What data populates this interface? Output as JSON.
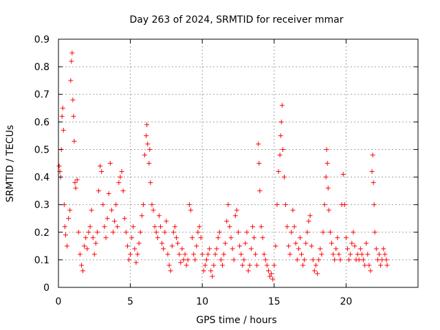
{
  "chart_data": {
    "type": "scatter",
    "title": "Day 263 of 2024, SRMTID for receiver mmar",
    "xlabel": "GPS time / hours",
    "ylabel": "SRMTID / TECUs",
    "xlim": [
      0,
      25
    ],
    "ylim": [
      0,
      0.9
    ],
    "x_ticks": [
      0,
      5,
      10,
      15,
      20
    ],
    "x_tick_labels": [
      "0",
      "5",
      "10",
      "15",
      "20"
    ],
    "y_ticks": [
      0,
      0.1,
      0.2,
      0.3,
      0.4,
      0.5,
      0.6,
      0.7,
      0.8,
      0.9
    ],
    "y_tick_labels": [
      "0",
      "0.1",
      "0.2",
      "0.3",
      "0.4",
      "0.5",
      "0.6",
      "0.7",
      "0.8",
      "0.9"
    ],
    "grid": true,
    "marker": "+",
    "marker_color": "#ff0000",
    "series": [
      {
        "name": "SRMTID",
        "points": [
          [
            0.05,
            0.44
          ],
          [
            0.1,
            0.42
          ],
          [
            0.15,
            0.4
          ],
          [
            0.2,
            0.5
          ],
          [
            0.25,
            0.62
          ],
          [
            0.3,
            0.65
          ],
          [
            0.35,
            0.57
          ],
          [
            0.4,
            0.3
          ],
          [
            0.45,
            0.22
          ],
          [
            0.5,
            0.19
          ],
          [
            0.6,
            0.15
          ],
          [
            0.7,
            0.25
          ],
          [
            0.8,
            0.28
          ],
          [
            0.85,
            0.75
          ],
          [
            0.9,
            0.82
          ],
          [
            0.95,
            0.85
          ],
          [
            1.0,
            0.68
          ],
          [
            1.05,
            0.62
          ],
          [
            1.1,
            0.53
          ],
          [
            1.15,
            0.38
          ],
          [
            1.2,
            0.36
          ],
          [
            1.3,
            0.39
          ],
          [
            1.4,
            0.2
          ],
          [
            1.5,
            0.12
          ],
          [
            1.6,
            0.08
          ],
          [
            1.7,
            0.06
          ],
          [
            1.8,
            0.15
          ],
          [
            1.9,
            0.18
          ],
          [
            2.0,
            0.14
          ],
          [
            2.1,
            0.2
          ],
          [
            2.2,
            0.22
          ],
          [
            2.3,
            0.28
          ],
          [
            2.4,
            0.18
          ],
          [
            2.5,
            0.12
          ],
          [
            2.6,
            0.16
          ],
          [
            2.7,
            0.2
          ],
          [
            2.8,
            0.35
          ],
          [
            2.9,
            0.44
          ],
          [
            3.0,
            0.42
          ],
          [
            3.1,
            0.3
          ],
          [
            3.2,
            0.22
          ],
          [
            3.3,
            0.18
          ],
          [
            3.4,
            0.25
          ],
          [
            3.5,
            0.34
          ],
          [
            3.6,
            0.45
          ],
          [
            3.7,
            0.28
          ],
          [
            3.8,
            0.2
          ],
          [
            3.9,
            0.24
          ],
          [
            4.0,
            0.3
          ],
          [
            4.1,
            0.22
          ],
          [
            4.2,
            0.38
          ],
          [
            4.3,
            0.4
          ],
          [
            4.4,
            0.42
          ],
          [
            4.5,
            0.35
          ],
          [
            4.6,
            0.25
          ],
          [
            4.7,
            0.2
          ],
          [
            4.8,
            0.15
          ],
          [
            4.9,
            0.1
          ],
          [
            5.0,
            0.12
          ],
          [
            5.1,
            0.18
          ],
          [
            5.2,
            0.22
          ],
          [
            5.3,
            0.14
          ],
          [
            5.4,
            0.09
          ],
          [
            5.5,
            0.12
          ],
          [
            5.6,
            0.16
          ],
          [
            5.7,
            0.2
          ],
          [
            5.8,
            0.26
          ],
          [
            5.9,
            0.3
          ],
          [
            6.0,
            0.48
          ],
          [
            6.1,
            0.55
          ],
          [
            6.15,
            0.59
          ],
          [
            6.2,
            0.52
          ],
          [
            6.3,
            0.45
          ],
          [
            6.35,
            0.5
          ],
          [
            6.4,
            0.38
          ],
          [
            6.5,
            0.3
          ],
          [
            6.6,
            0.28
          ],
          [
            6.7,
            0.22
          ],
          [
            6.8,
            0.2
          ],
          [
            6.9,
            0.18
          ],
          [
            7.0,
            0.26
          ],
          [
            7.1,
            0.22
          ],
          [
            7.2,
            0.16
          ],
          [
            7.3,
            0.14
          ],
          [
            7.4,
            0.2
          ],
          [
            7.5,
            0.24
          ],
          [
            7.6,
            0.12
          ],
          [
            7.7,
            0.08
          ],
          [
            7.8,
            0.06
          ],
          [
            7.9,
            0.15
          ],
          [
            8.0,
            0.2
          ],
          [
            8.1,
            0.22
          ],
          [
            8.2,
            0.18
          ],
          [
            8.3,
            0.16
          ],
          [
            8.4,
            0.12
          ],
          [
            8.5,
            0.09
          ],
          [
            8.6,
            0.14
          ],
          [
            8.7,
            0.1
          ],
          [
            8.8,
            0.12
          ],
          [
            8.9,
            0.08
          ],
          [
            9.0,
            0.1
          ],
          [
            9.1,
            0.3
          ],
          [
            9.2,
            0.28
          ],
          [
            9.3,
            0.18
          ],
          [
            9.4,
            0.12
          ],
          [
            9.5,
            0.1
          ],
          [
            9.6,
            0.15
          ],
          [
            9.7,
            0.2
          ],
          [
            9.8,
            0.22
          ],
          [
            9.9,
            0.18
          ],
          [
            10.0,
            0.12
          ],
          [
            10.1,
            0.06
          ],
          [
            10.2,
            0.08
          ],
          [
            10.3,
            0.1
          ],
          [
            10.4,
            0.12
          ],
          [
            10.5,
            0.14
          ],
          [
            10.6,
            0.06
          ],
          [
            10.7,
            0.04
          ],
          [
            10.8,
            0.08
          ],
          [
            10.9,
            0.12
          ],
          [
            11.0,
            0.14
          ],
          [
            11.1,
            0.18
          ],
          [
            11.2,
            0.2
          ],
          [
            11.3,
            0.1
          ],
          [
            11.4,
            0.08
          ],
          [
            11.5,
            0.12
          ],
          [
            11.6,
            0.16
          ],
          [
            11.7,
            0.24
          ],
          [
            11.8,
            0.3
          ],
          [
            11.9,
            0.22
          ],
          [
            12.0,
            0.18
          ],
          [
            12.1,
            0.14
          ],
          [
            12.2,
            0.1
          ],
          [
            12.3,
            0.26
          ],
          [
            12.4,
            0.28
          ],
          [
            12.5,
            0.2
          ],
          [
            12.6,
            0.15
          ],
          [
            12.7,
            0.12
          ],
          [
            12.8,
            0.08
          ],
          [
            12.9,
            0.1
          ],
          [
            13.0,
            0.16
          ],
          [
            13.1,
            0.2
          ],
          [
            13.2,
            0.06
          ],
          [
            13.3,
            0.08
          ],
          [
            13.4,
            0.14
          ],
          [
            13.5,
            0.22
          ],
          [
            13.6,
            0.18
          ],
          [
            13.7,
            0.12
          ],
          [
            13.8,
            0.08
          ],
          [
            13.9,
            0.52
          ],
          [
            13.95,
            0.45
          ],
          [
            14.0,
            0.35
          ],
          [
            14.1,
            0.22
          ],
          [
            14.2,
            0.18
          ],
          [
            14.3,
            0.12
          ],
          [
            14.4,
            0.1
          ],
          [
            14.5,
            0.08
          ],
          [
            14.6,
            0.06
          ],
          [
            14.7,
            0.04
          ],
          [
            14.8,
            0.05
          ],
          [
            14.9,
            0.03
          ],
          [
            15.0,
            0.08
          ],
          [
            15.1,
            0.15
          ],
          [
            15.2,
            0.3
          ],
          [
            15.3,
            0.42
          ],
          [
            15.4,
            0.48
          ],
          [
            15.45,
            0.55
          ],
          [
            15.5,
            0.6
          ],
          [
            15.55,
            0.66
          ],
          [
            15.6,
            0.5
          ],
          [
            15.7,
            0.4
          ],
          [
            15.8,
            0.3
          ],
          [
            15.9,
            0.22
          ],
          [
            16.0,
            0.15
          ],
          [
            16.1,
            0.12
          ],
          [
            16.2,
            0.2
          ],
          [
            16.3,
            0.28
          ],
          [
            16.4,
            0.22
          ],
          [
            16.5,
            0.16
          ],
          [
            16.6,
            0.1
          ],
          [
            16.7,
            0.14
          ],
          [
            16.8,
            0.18
          ],
          [
            16.9,
            0.12
          ],
          [
            17.0,
            0.08
          ],
          [
            17.1,
            0.1
          ],
          [
            17.2,
            0.16
          ],
          [
            17.3,
            0.2
          ],
          [
            17.4,
            0.24
          ],
          [
            17.5,
            0.26
          ],
          [
            17.6,
            0.15
          ],
          [
            17.7,
            0.1
          ],
          [
            17.8,
            0.06
          ],
          [
            17.9,
            0.08
          ],
          [
            18.0,
            0.05
          ],
          [
            18.1,
            0.1
          ],
          [
            18.2,
            0.14
          ],
          [
            18.3,
            0.12
          ],
          [
            18.4,
            0.2
          ],
          [
            18.5,
            0.3
          ],
          [
            18.6,
            0.4
          ],
          [
            18.65,
            0.5
          ],
          [
            18.7,
            0.45
          ],
          [
            18.75,
            0.36
          ],
          [
            18.8,
            0.28
          ],
          [
            18.9,
            0.2
          ],
          [
            19.0,
            0.16
          ],
          [
            19.1,
            0.12
          ],
          [
            19.2,
            0.1
          ],
          [
            19.3,
            0.14
          ],
          [
            19.4,
            0.18
          ],
          [
            19.5,
            0.12
          ],
          [
            19.6,
            0.1
          ],
          [
            19.7,
            0.3
          ],
          [
            19.8,
            0.41
          ],
          [
            19.9,
            0.3
          ],
          [
            20.0,
            0.18
          ],
          [
            20.1,
            0.14
          ],
          [
            20.2,
            0.1
          ],
          [
            20.3,
            0.12
          ],
          [
            20.4,
            0.16
          ],
          [
            20.5,
            0.2
          ],
          [
            20.6,
            0.15
          ],
          [
            20.7,
            0.1
          ],
          [
            20.8,
            0.12
          ],
          [
            20.9,
            0.1
          ],
          [
            21.0,
            0.14
          ],
          [
            21.1,
            0.12
          ],
          [
            21.2,
            0.1
          ],
          [
            21.3,
            0.08
          ],
          [
            21.4,
            0.16
          ],
          [
            21.5,
            0.12
          ],
          [
            21.6,
            0.08
          ],
          [
            21.7,
            0.06
          ],
          [
            21.8,
            0.42
          ],
          [
            21.85,
            0.48
          ],
          [
            21.9,
            0.38
          ],
          [
            21.95,
            0.3
          ],
          [
            22.0,
            0.2
          ],
          [
            22.1,
            0.14
          ],
          [
            22.2,
            0.1
          ],
          [
            22.3,
            0.12
          ],
          [
            22.4,
            0.08
          ],
          [
            22.5,
            0.1
          ],
          [
            22.6,
            0.14
          ],
          [
            22.7,
            0.12
          ],
          [
            22.8,
            0.1
          ],
          [
            22.85,
            0.08
          ]
        ]
      }
    ]
  }
}
